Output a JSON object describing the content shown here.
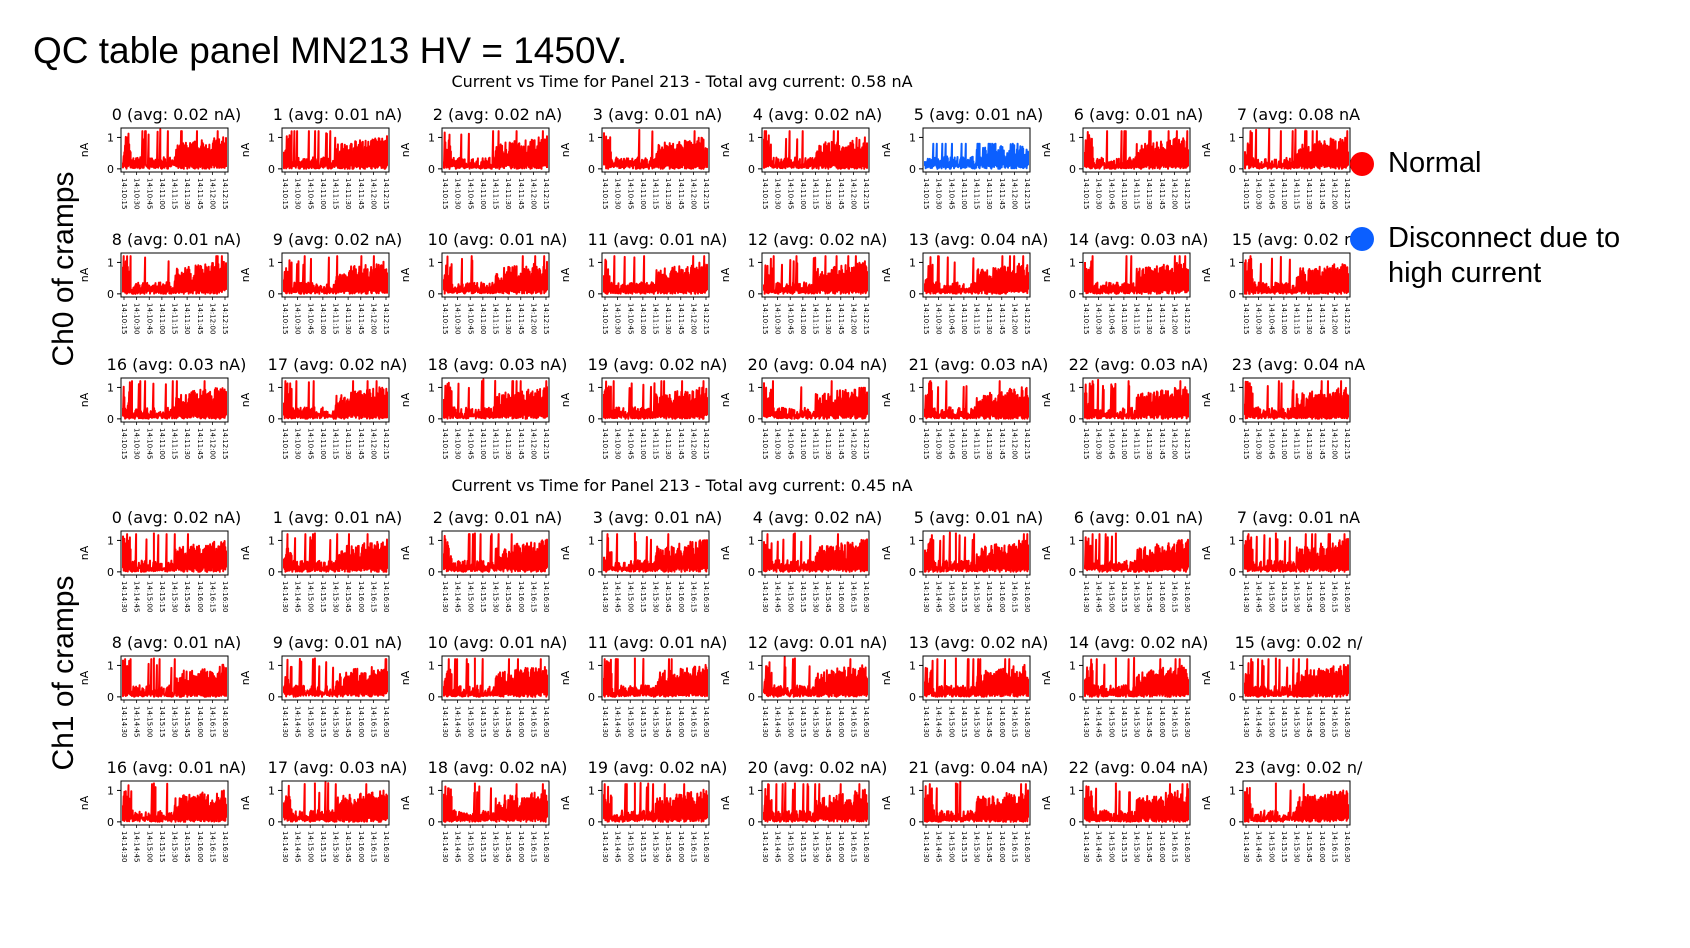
{
  "page": {
    "title": "QC table panel MN213 HV = 1450V.",
    "row_labels": [
      "Ch0 of cramps",
      "Ch1 of cramps"
    ]
  },
  "legend": [
    {
      "label": "Normal",
      "color": "#ff0000"
    },
    {
      "label": "Disconnect due to high current",
      "color": "#0b5fff"
    }
  ],
  "colors": {
    "normal": "#ff0000",
    "disconnect": "#0b5fff"
  },
  "chart_data": [
    {
      "type": "line",
      "title": "Current vs Time for Panel 213 - Total avg current: 0.58 nA",
      "ylabel": "nA",
      "ylim": [
        -0.1,
        1.3
      ],
      "yticks": [
        0,
        1
      ],
      "xticks": [
        "14:10:15",
        "14:10:30",
        "14:10:45",
        "14:11:00",
        "14:11:15",
        "14:11:30",
        "14:11:45",
        "14:12:00",
        "14:12:15"
      ],
      "subplots": [
        {
          "channel": 0,
          "title": "0 (avg: 0.02 nA)",
          "status": "normal"
        },
        {
          "channel": 1,
          "title": "1 (avg: 0.01 nA)",
          "status": "normal"
        },
        {
          "channel": 2,
          "title": "2 (avg: 0.02 nA)",
          "status": "normal"
        },
        {
          "channel": 3,
          "title": "3 (avg: 0.01 nA)",
          "status": "normal"
        },
        {
          "channel": 4,
          "title": "4 (avg: 0.02 nA)",
          "status": "normal"
        },
        {
          "channel": 5,
          "title": "5 (avg: 0.01 nA)",
          "status": "disconnect"
        },
        {
          "channel": 6,
          "title": "6 (avg: 0.01 nA)",
          "status": "normal"
        },
        {
          "channel": 7,
          "title": "7 (avg: 0.08 nA",
          "status": "normal"
        },
        {
          "channel": 8,
          "title": "8 (avg: 0.01 nA)",
          "status": "normal"
        },
        {
          "channel": 9,
          "title": "9 (avg: 0.02 nA)",
          "status": "normal"
        },
        {
          "channel": 10,
          "title": "10 (avg: 0.01 nA)",
          "status": "normal"
        },
        {
          "channel": 11,
          "title": "11 (avg: 0.01 nA)",
          "status": "normal"
        },
        {
          "channel": 12,
          "title": "12 (avg: 0.02 nA)",
          "status": "normal"
        },
        {
          "channel": 13,
          "title": "13 (avg: 0.04 nA)",
          "status": "normal"
        },
        {
          "channel": 14,
          "title": "14 (avg: 0.03 nA)",
          "status": "normal"
        },
        {
          "channel": 15,
          "title": "15 (avg: 0.02 nA",
          "status": "normal"
        },
        {
          "channel": 16,
          "title": "16 (avg: 0.03 nA)",
          "status": "normal"
        },
        {
          "channel": 17,
          "title": "17 (avg: 0.02 nA)",
          "status": "normal"
        },
        {
          "channel": 18,
          "title": "18 (avg: 0.03 nA)",
          "status": "normal"
        },
        {
          "channel": 19,
          "title": "19 (avg: 0.02 nA)",
          "status": "normal"
        },
        {
          "channel": 20,
          "title": "20 (avg: 0.04 nA)",
          "status": "normal"
        },
        {
          "channel": 21,
          "title": "21 (avg: 0.03 nA)",
          "status": "normal"
        },
        {
          "channel": 22,
          "title": "22 (avg: 0.03 nA)",
          "status": "normal"
        },
        {
          "channel": 23,
          "title": "23 (avg: 0.04 nA",
          "status": "normal"
        }
      ]
    },
    {
      "type": "line",
      "title": "Current vs Time for Panel 213 - Total avg current: 0.45 nA",
      "ylabel": "nA",
      "ylim": [
        -0.1,
        1.3
      ],
      "yticks": [
        0,
        1
      ],
      "xticks": [
        "14:14:30",
        "14:14:45",
        "14:15:00",
        "14:15:15",
        "14:15:30",
        "14:15:45",
        "14:16:00",
        "14:16:15",
        "14:16:30"
      ],
      "subplots": [
        {
          "channel": 0,
          "title": "0 (avg: 0.02 nA)",
          "status": "normal"
        },
        {
          "channel": 1,
          "title": "1 (avg: 0.01 nA)",
          "status": "normal"
        },
        {
          "channel": 2,
          "title": "2 (avg: 0.01 nA)",
          "status": "normal"
        },
        {
          "channel": 3,
          "title": "3 (avg: 0.01 nA)",
          "status": "normal"
        },
        {
          "channel": 4,
          "title": "4 (avg: 0.02 nA)",
          "status": "normal"
        },
        {
          "channel": 5,
          "title": "5 (avg: 0.01 nA)",
          "status": "normal"
        },
        {
          "channel": 6,
          "title": "6 (avg: 0.01 nA)",
          "status": "normal"
        },
        {
          "channel": 7,
          "title": "7 (avg: 0.01 nA",
          "status": "normal"
        },
        {
          "channel": 8,
          "title": "8 (avg: 0.01 nA)",
          "status": "normal"
        },
        {
          "channel": 9,
          "title": "9 (avg: 0.01 nA)",
          "status": "normal"
        },
        {
          "channel": 10,
          "title": "10 (avg: 0.01 nA)",
          "status": "normal"
        },
        {
          "channel": 11,
          "title": "11 (avg: 0.01 nA)",
          "status": "normal"
        },
        {
          "channel": 12,
          "title": "12 (avg: 0.01 nA)",
          "status": "normal"
        },
        {
          "channel": 13,
          "title": "13 (avg: 0.02 nA)",
          "status": "normal"
        },
        {
          "channel": 14,
          "title": "14 (avg: 0.02 nA)",
          "status": "normal"
        },
        {
          "channel": 15,
          "title": "15 (avg: 0.02 n/",
          "status": "normal"
        },
        {
          "channel": 16,
          "title": "16 (avg: 0.01 nA)",
          "status": "normal"
        },
        {
          "channel": 17,
          "title": "17 (avg: 0.03 nA)",
          "status": "normal"
        },
        {
          "channel": 18,
          "title": "18 (avg: 0.02 nA)",
          "status": "normal"
        },
        {
          "channel": 19,
          "title": "19 (avg: 0.02 nA)",
          "status": "normal"
        },
        {
          "channel": 20,
          "title": "20 (avg: 0.02 nA)",
          "status": "normal"
        },
        {
          "channel": 21,
          "title": "21 (avg: 0.04 nA)",
          "status": "normal"
        },
        {
          "channel": 22,
          "title": "22 (avg: 0.04 nA)",
          "status": "normal"
        },
        {
          "channel": 23,
          "title": "23 (avg: 0.02 n/",
          "status": "normal"
        }
      ]
    }
  ]
}
